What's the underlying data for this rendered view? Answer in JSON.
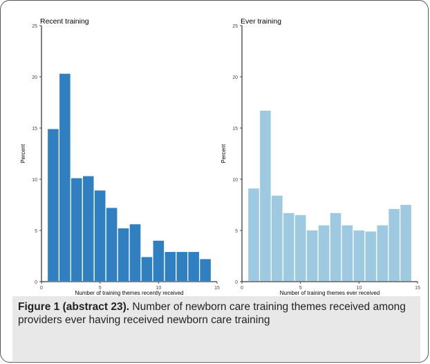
{
  "chart_data": [
    {
      "type": "bar",
      "title": "Recent training",
      "xlabel": "Number of training themes recently received",
      "ylabel": "Percent",
      "color": "#2f7fc1",
      "x": [
        1,
        2,
        3,
        4,
        5,
        6,
        7,
        8,
        9,
        10,
        11,
        12,
        13,
        14
      ],
      "values": [
        14.9,
        20.3,
        10.1,
        10.3,
        8.9,
        7.2,
        5.2,
        5.6,
        2.4,
        4.0,
        2.9,
        2.9,
        2.9,
        2.2
      ],
      "xlim": [
        0,
        15
      ],
      "ylim": [
        0,
        25
      ],
      "xticks": [
        "0",
        "5",
        "10",
        "15"
      ],
      "yticks": [
        "0",
        "5",
        "10",
        "15",
        "20",
        "25"
      ]
    },
    {
      "type": "bar",
      "title": "Ever training",
      "xlabel": "Number of training themes ever received",
      "ylabel": "Percent",
      "color": "#9ecae1",
      "x": [
        1,
        2,
        3,
        4,
        5,
        6,
        7,
        8,
        9,
        10,
        11,
        12,
        13,
        14
      ],
      "values": [
        9.1,
        16.7,
        8.4,
        6.7,
        6.5,
        5.0,
        5.5,
        6.7,
        5.5,
        5.0,
        4.9,
        5.5,
        7.1,
        7.5
      ],
      "xlim": [
        0,
        15
      ],
      "ylim": [
        0,
        25
      ],
      "xticks": [
        "0",
        "5",
        "10",
        "15"
      ],
      "yticks": [
        "0",
        "5",
        "10",
        "15",
        "20",
        "25"
      ]
    }
  ],
  "caption": {
    "label": "Figure 1 (abstract 23).",
    "text": " Number of newborn care training themes received among providers ever having received newborn care training"
  }
}
